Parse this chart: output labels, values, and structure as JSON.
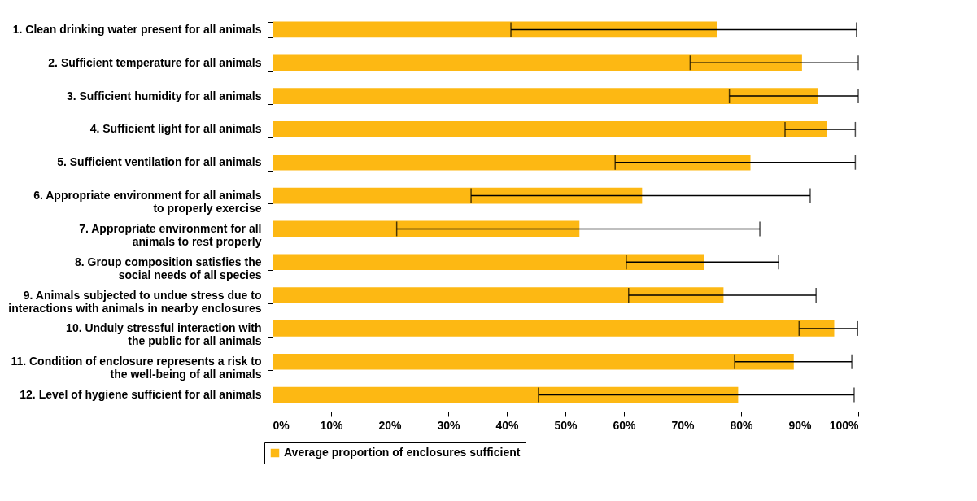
{
  "chart_data": {
    "type": "bar",
    "orientation": "horizontal",
    "categories": [
      "1. Clean drinking water present for all animals",
      "2. Sufficient temperature for all animals",
      "3. Sufficient humidity for all animals",
      "4. Sufficient light for all animals",
      "5. Sufficient ventilation for all animals",
      "6. Appropriate environment for all animals\nto properly exercise",
      "7. Appropriate environment for all\nanimals to rest properly",
      "8. Group composition satisfies the\nsocial needs of all species",
      "9. Animals subjected to undue stress due to\ninteractions with animals in nearby enclosures",
      "10. Unduly stressful interaction with\nthe public for all animals",
      "11. Condition of enclosure represents a risk to\nthe well-being of all animals",
      "12. Level of hygiene sufficient for all animals"
    ],
    "series": [
      {
        "name": "Average proportion of enclosures sufficient",
        "color": "#fdb813",
        "values": [
          75.9,
          90.4,
          93.1,
          94.6,
          81.6,
          63.1,
          52.4,
          73.7,
          77.0,
          95.9,
          89.0,
          79.5
        ],
        "errors": [
          [
            40.7,
            99.7
          ],
          [
            71.3,
            100
          ],
          [
            78.0,
            100
          ],
          [
            87.5,
            99.5
          ],
          [
            58.5,
            99.5
          ],
          [
            33.9,
            91.8
          ],
          [
            21.2,
            83.2
          ],
          [
            60.4,
            86.4
          ],
          [
            60.8,
            92.8
          ],
          [
            89.9,
            99.9
          ],
          [
            78.9,
            98.9
          ],
          [
            45.4,
            99.3
          ]
        ]
      }
    ],
    "xlim": [
      0,
      100
    ],
    "xticks": [
      {
        "value": 0,
        "label": "0%"
      },
      {
        "value": 10,
        "label": "10%"
      },
      {
        "value": 20,
        "label": "20%"
      },
      {
        "value": 30,
        "label": "30%"
      },
      {
        "value": 40,
        "label": "40%"
      },
      {
        "value": 50,
        "label": "50%"
      },
      {
        "value": 60,
        "label": "60%"
      },
      {
        "value": 70,
        "label": "70%"
      },
      {
        "value": 80,
        "label": "80%"
      },
      {
        "value": 90,
        "label": "90%"
      },
      {
        "value": 100,
        "label": "100%"
      }
    ],
    "grid": false,
    "legend": "bottom left"
  }
}
